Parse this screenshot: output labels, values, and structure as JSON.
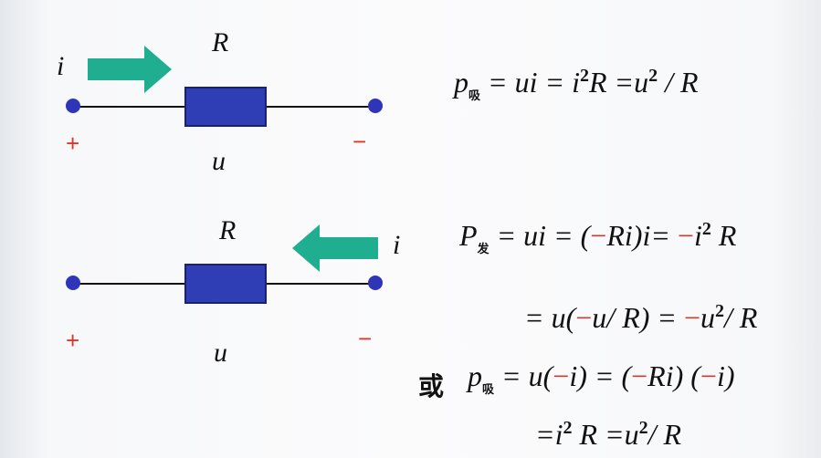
{
  "circuit1": {
    "current_label": "i",
    "resistor_label": "R",
    "voltage_label": "u",
    "plus": "+",
    "minus": "−"
  },
  "circuit2": {
    "current_label": "i",
    "resistor_label": "R",
    "voltage_label": "u",
    "plus": "+",
    "minus": "−"
  },
  "eq1": {
    "p": "p",
    "sub": "吸",
    "a": " = ui = i",
    "a_sup": "2",
    "b": "R =u",
    "b_sup": "2",
    "c": " / R"
  },
  "eq2": {
    "p": "P",
    "sub": "发",
    "a": " = ui = (",
    "neg1": "−",
    "b": "Ri)i= ",
    "neg2": "−",
    "c": "i",
    "c_sup": "2",
    "d": " R"
  },
  "eq3": {
    "a": "= u(",
    "neg1": "−",
    "b": "u/ R) = ",
    "neg2": "−",
    "c": "u",
    "c_sup": "2",
    "d": "/ R"
  },
  "eq4": {
    "or": "或",
    "p": "p",
    "sub": "吸",
    "a": " = u(",
    "neg1": "−",
    "b": "i)  = (",
    "neg2": "−",
    "c": "Ri) (",
    "neg3": "−",
    "d": "i)"
  },
  "eq5": {
    "a": "=i",
    "a_sup": "2",
    "b": " R =u",
    "b_sup": "2",
    "c": "/ R"
  },
  "colors": {
    "arrow": "#1fae8f",
    "resistor": "#2f3eb4",
    "terminal": "#2e35b8",
    "sign": "#d8382a"
  }
}
